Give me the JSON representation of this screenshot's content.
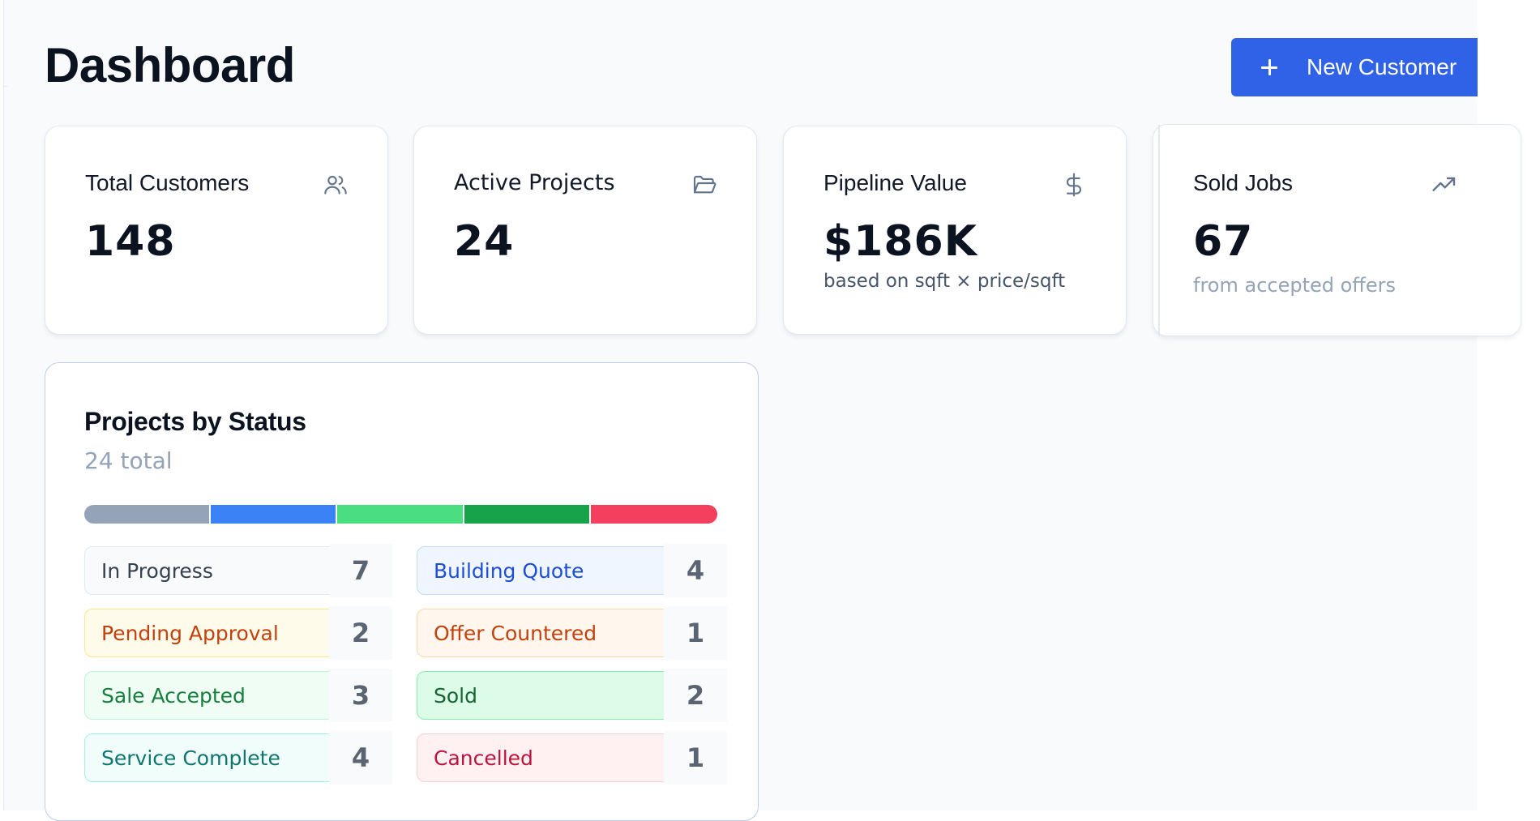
{
  "header": {
    "title": "Dashboard",
    "new_customer_label": "New Customer"
  },
  "stats": [
    {
      "label": "Total Customers",
      "value": "148",
      "sub": "",
      "icon": "users-icon"
    },
    {
      "label": "Active Projects",
      "value": "24",
      "sub": "",
      "icon": "folder-open-icon"
    },
    {
      "label": "Pipeline Value",
      "value": "$186K",
      "sub": "based on sqft × price/sqft",
      "icon": "dollar-icon"
    },
    {
      "label": "Sold Jobs",
      "value": "67",
      "sub": "from accepted offers",
      "icon": "trending-up-icon"
    }
  ],
  "projects_by_status": {
    "title": "Projects by Status",
    "total_text": "24 total",
    "statuses": [
      {
        "label": "In Progress",
        "count": "7",
        "text_color": "#374151",
        "bg": "#f8fafc",
        "border": "#e2e8f0",
        "bar_color": "#94a3b8"
      },
      {
        "label": "Building Quote",
        "count": "4",
        "text_color": "#1d4ed8",
        "bg": "#eff6ff",
        "border": "#bfdbfe",
        "bar_color": "#3b82f6"
      },
      {
        "label": "Pending Approval",
        "count": "2",
        "text_color": "#c2410c",
        "bg": "#fffbeb",
        "border": "#fde68a",
        "bar_color": "#4ade80"
      },
      {
        "label": "Offer Countered",
        "count": "1",
        "text_color": "#c2410c",
        "bg": "#fff7ed",
        "border": "#fed7aa",
        "bar_color": "#16a34a"
      },
      {
        "label": "Sale Accepted",
        "count": "3",
        "text_color": "#15803d",
        "bg": "#f0fdf4",
        "border": "#bbf7d0",
        "bar_color": "#f43f5e"
      },
      {
        "label": "Sold",
        "count": "2",
        "text_color": "#166534",
        "bg": "#dcfce7",
        "border": "#86efac"
      },
      {
        "label": "Service Complete",
        "count": "4",
        "text_color": "#0f766e",
        "bg": "#f0fdfa",
        "border": "#99f6e4"
      },
      {
        "label": "Cancelled",
        "count": "1",
        "text_color": "#be123c",
        "bg": "#fff1f2",
        "border": "#fecdd3"
      }
    ],
    "bar_segments": [
      {
        "color": "#94a3b8",
        "share": 0.2
      },
      {
        "color": "#3b82f6",
        "share": 0.2
      },
      {
        "color": "#4ade80",
        "share": 0.2
      },
      {
        "color": "#16a34a",
        "share": 0.2
      },
      {
        "color": "#f43f5e",
        "share": 0.2
      }
    ]
  },
  "colors": {
    "accent": "#2f62e6",
    "background": "#f8fafc"
  }
}
